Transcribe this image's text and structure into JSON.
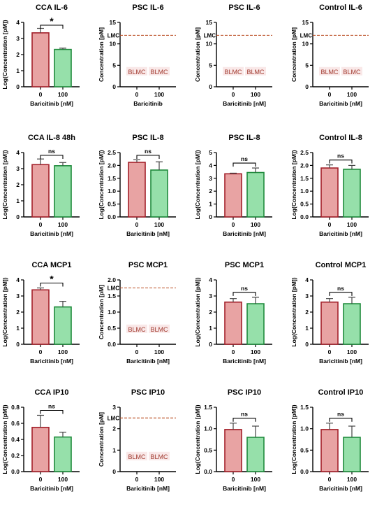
{
  "colors": {
    "bar0_fill": "#e8a3a3",
    "bar0_edge": "#a3202a",
    "bar1_fill": "#96e0aa",
    "bar1_edge": "#1f8a3c",
    "lmc_line": "#b84a1e",
    "blmc_band": "#f7dede",
    "blmc_text": "#a0392e"
  },
  "chart_data": [
    {
      "type": "bar",
      "title": "CCA IL-6",
      "categories": [
        "0",
        "100"
      ],
      "values": [
        3.35,
        2.32
      ],
      "errors": [
        0.28,
        0.08
      ],
      "ylim": [
        0,
        4
      ],
      "yticks": [
        0,
        1,
        2,
        3,
        4
      ],
      "ylabel": "Log(Concentration [pM])",
      "xlabel": "Baricitinib [nM]",
      "significance": "*"
    },
    {
      "type": "bar",
      "title": "PSC IL-6",
      "categories": [
        "0",
        "100"
      ],
      "values": [
        null,
        null
      ],
      "ylim": [
        0,
        15
      ],
      "yticks": [
        0,
        5,
        10,
        15
      ],
      "ylabel": "Concentration [pM]",
      "xlabel": "Baricitinib",
      "below_lmc_labels": [
        "BLMC",
        "BLMC"
      ],
      "lmc_label": "LMC",
      "lmc_value": 12
    },
    {
      "type": "bar",
      "title": "PSC IL-6",
      "categories": [
        "0",
        "100"
      ],
      "values": [
        null,
        null
      ],
      "ylim": [
        0,
        15
      ],
      "yticks": [
        0,
        5,
        10,
        15
      ],
      "ylabel": "Concentration [pM]",
      "xlabel": "Baricitinib [nM]",
      "below_lmc_labels": [
        "BLMC",
        "BLMC"
      ],
      "lmc_label": "LMC",
      "lmc_value": 12
    },
    {
      "type": "bar",
      "title": "Control IL-6",
      "categories": [
        "0",
        "100"
      ],
      "values": [
        null,
        null
      ],
      "ylim": [
        0,
        15
      ],
      "yticks": [
        0,
        5,
        10,
        15
      ],
      "ylabel": "Concentration [pM]",
      "xlabel": "Baricitinib [nM]",
      "below_lmc_labels": [
        "BLMC",
        "BLMC"
      ],
      "lmc_label": "LMC",
      "lmc_value": 12
    },
    {
      "type": "bar",
      "title": "CCA IL-8 48h",
      "categories": [
        "0",
        "100"
      ],
      "values": [
        3.25,
        3.18
      ],
      "errors": [
        0.35,
        0.2
      ],
      "ylim": [
        0,
        4
      ],
      "yticks": [
        0,
        1,
        2,
        3,
        4
      ],
      "ylabel": "Log(Concentration [pM])",
      "xlabel": "Baricitinib [nM]",
      "significance": "ns"
    },
    {
      "type": "bar",
      "title": "PSC IL-8",
      "categories": [
        "0",
        "100"
      ],
      "values": [
        2.12,
        1.82
      ],
      "errors": [
        0.1,
        0.32
      ],
      "ylim": [
        0,
        2.5
      ],
      "yticks": [
        0.0,
        0.5,
        1.0,
        1.5,
        2.0,
        2.5
      ],
      "ylabel": "Log(Concentration [pM])",
      "xlabel": "Baricitinib [nM]",
      "significance": "ns"
    },
    {
      "type": "bar",
      "title": "PSC IL-8",
      "categories": [
        "0",
        "100"
      ],
      "values": [
        3.35,
        3.45
      ],
      "errors": [
        0.05,
        0.35
      ],
      "ylim": [
        0,
        5
      ],
      "yticks": [
        0,
        1,
        2,
        3,
        4,
        5
      ],
      "ylabel": "Log(Concentration [pM])",
      "xlabel": "Baricitinib [nM]",
      "significance": "ns"
    },
    {
      "type": "bar",
      "title": "Control IL-8",
      "categories": [
        "0",
        "100"
      ],
      "values": [
        1.9,
        1.85
      ],
      "errors": [
        0.12,
        0.15
      ],
      "ylim": [
        0,
        2.5
      ],
      "yticks": [
        0.0,
        0.5,
        1.0,
        1.5,
        2.0,
        2.5
      ],
      "ylabel": "Log(Concentration [pM])",
      "xlabel": "Baricitinib [nM]",
      "significance": "ns"
    },
    {
      "type": "bar",
      "title": "CCA MCP1",
      "categories": [
        "0",
        "100"
      ],
      "values": [
        3.38,
        2.32
      ],
      "errors": [
        0.12,
        0.35
      ],
      "ylim": [
        0,
        4
      ],
      "yticks": [
        0,
        1,
        2,
        3,
        4
      ],
      "ylabel": "Log(Concentration [pM])",
      "xlabel": "Baricitinib [nM]",
      "significance": "*"
    },
    {
      "type": "bar",
      "title": "PSC MCP1",
      "categories": [
        "0",
        "100"
      ],
      "values": [
        null,
        null
      ],
      "ylim": [
        0,
        2.0
      ],
      "yticks": [
        0.0,
        0.5,
        1.0,
        1.5,
        2.0
      ],
      "ylabel": "Concentration [pM]",
      "xlabel": "Baricitinib [nM]",
      "below_lmc_labels": [
        "BLMC",
        "BLMC"
      ],
      "lmc_label": "LMC",
      "lmc_value": 1.75
    },
    {
      "type": "bar",
      "title": "PSC MCP1",
      "categories": [
        "0",
        "100"
      ],
      "values": [
        2.62,
        2.52
      ],
      "errors": [
        0.22,
        0.4
      ],
      "ylim": [
        0,
        4
      ],
      "yticks": [
        0,
        1,
        2,
        3,
        4
      ],
      "ylabel": "Log(Concentration [pM])",
      "xlabel": "Baricitinib [nM]",
      "significance": "ns"
    },
    {
      "type": "bar",
      "title": "Control MCP1",
      "categories": [
        "0",
        "100"
      ],
      "values": [
        2.62,
        2.52
      ],
      "errors": [
        0.22,
        0.4
      ],
      "ylim": [
        0,
        4
      ],
      "yticks": [
        0,
        1,
        2,
        3,
        4
      ],
      "ylabel": "Log(Concentration [pM])",
      "xlabel": "Baricitinib [nM]",
      "significance": "ns"
    },
    {
      "type": "bar",
      "title": "CCA IP10",
      "categories": [
        "0",
        "100"
      ],
      "values": [
        0.55,
        0.43
      ],
      "errors": [
        0.15,
        0.06
      ],
      "ylim": [
        0,
        0.8
      ],
      "yticks": [
        0.0,
        0.2,
        0.4,
        0.6,
        0.8
      ],
      "ylabel": "Log(Concentration [pM])",
      "xlabel": "Baricitinib [nM]",
      "significance": "ns"
    },
    {
      "type": "bar",
      "title": "PSC IP10",
      "categories": [
        "0",
        "100"
      ],
      "values": [
        null,
        null
      ],
      "ylim": [
        0,
        3
      ],
      "yticks": [
        0,
        1,
        2,
        3
      ],
      "ylabel": "Concentration [pM]",
      "xlabel": "Baricitinib [nM]",
      "below_lmc_labels": [
        "BLMC",
        "BLMC"
      ],
      "lmc_label": "LMC",
      "lmc_value": 2.5
    },
    {
      "type": "bar",
      "title": "PSC IP10",
      "categories": [
        "0",
        "100"
      ],
      "values": [
        0.98,
        0.8
      ],
      "errors": [
        0.15,
        0.26
      ],
      "ylim": [
        0,
        1.5
      ],
      "yticks": [
        0.0,
        0.5,
        1.0,
        1.5
      ],
      "ylabel": "Log(Concentration [pM])",
      "xlabel": "Baricitinib [nM]",
      "significance": "ns"
    },
    {
      "type": "bar",
      "title": "Control IP10",
      "categories": [
        "0",
        "100"
      ],
      "values": [
        0.98,
        0.8
      ],
      "errors": [
        0.15,
        0.26
      ],
      "ylim": [
        0,
        1.5
      ],
      "yticks": [
        0.0,
        0.5,
        1.0,
        1.5
      ],
      "ylabel": "Log(Concentration [pM])",
      "xlabel": "Baricitinib [nM]",
      "significance": "ns"
    }
  ]
}
